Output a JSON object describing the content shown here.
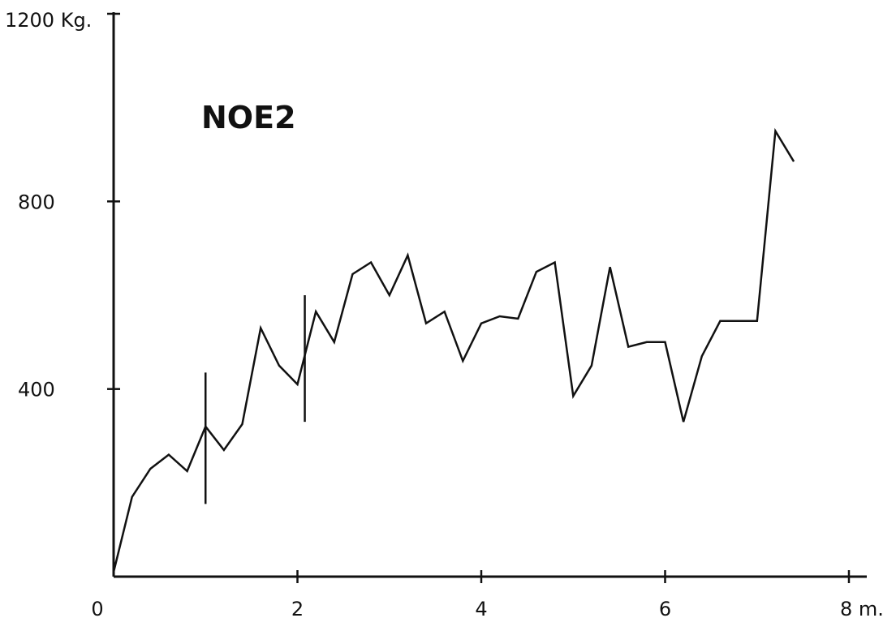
{
  "chart_data": {
    "type": "line",
    "title": "NOE2",
    "xlabel": "",
    "ylabel": "",
    "xlim": [
      0,
      8
    ],
    "ylim": [
      0,
      1200
    ],
    "grid": false,
    "x_ticks": [
      {
        "value": 0,
        "label": "0"
      },
      {
        "value": 2,
        "label": "2"
      },
      {
        "value": 4,
        "label": "4"
      },
      {
        "value": 6,
        "label": "6"
      },
      {
        "value": 8,
        "label": "8 m."
      }
    ],
    "y_ticks": [
      {
        "value": 400,
        "label": "400"
      },
      {
        "value": 800,
        "label": "800"
      },
      {
        "value": 1200,
        "label": "1200 Kg."
      }
    ],
    "series": [
      {
        "color": "#111111",
        "points": [
          [
            0.0,
            10
          ],
          [
            0.2,
            170
          ],
          [
            0.4,
            230
          ],
          [
            0.6,
            260
          ],
          [
            0.8,
            225
          ],
          [
            1.0,
            320
          ],
          [
            1.2,
            270
          ],
          [
            1.4,
            325
          ],
          [
            1.6,
            530
          ],
          [
            1.8,
            450
          ],
          [
            2.0,
            410
          ],
          [
            2.2,
            565
          ],
          [
            2.4,
            500
          ],
          [
            2.6,
            645
          ],
          [
            2.8,
            670
          ],
          [
            3.0,
            600
          ],
          [
            3.2,
            685
          ],
          [
            3.4,
            540
          ],
          [
            3.6,
            565
          ],
          [
            3.8,
            460
          ],
          [
            4.0,
            540
          ],
          [
            4.2,
            555
          ],
          [
            4.4,
            550
          ],
          [
            4.6,
            650
          ],
          [
            4.8,
            670
          ],
          [
            5.0,
            385
          ],
          [
            5.2,
            450
          ],
          [
            5.4,
            660
          ],
          [
            5.6,
            490
          ],
          [
            5.8,
            500
          ],
          [
            6.0,
            500
          ],
          [
            6.2,
            330
          ],
          [
            6.4,
            470
          ],
          [
            6.6,
            545
          ],
          [
            6.8,
            545
          ],
          [
            7.0,
            545
          ],
          [
            7.2,
            950
          ],
          [
            7.4,
            885
          ]
        ]
      }
    ],
    "error_bars": [
      {
        "x": 1.0,
        "low": 155,
        "high": 435
      },
      {
        "x": 2.08,
        "low": 330,
        "high": 600
      }
    ]
  }
}
